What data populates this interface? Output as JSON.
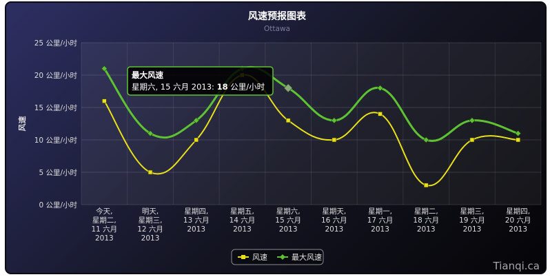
{
  "chart_data": {
    "type": "line",
    "title": "风速预报图表",
    "subtitle": "Ottawa",
    "ylabel": "风速",
    "xlabel": "",
    "ylim": [
      0,
      25
    ],
    "y_ticks": [
      0,
      5,
      10,
      15,
      20,
      25
    ],
    "y_tick_labels": [
      "0 公里/小时",
      "5 公里/小时",
      "10 公里/小时",
      "15 公里/小时",
      "20 公里/小时",
      "25 公里/小时"
    ],
    "categories": [
      [
        "今天,",
        "星期二,",
        "11 六月",
        "2013"
      ],
      [
        "明天,",
        "星期三,",
        "12 六月",
        "2013"
      ],
      [
        "星期四,",
        "13 六月",
        "2013"
      ],
      [
        "星期五,",
        "14 六月",
        "2013"
      ],
      [
        "星期六,",
        "15 六月",
        "2013"
      ],
      [
        "星期天,",
        "16 六月",
        "2013"
      ],
      [
        "星期一,",
        "17 六月",
        "2013"
      ],
      [
        "星期二,",
        "18 六月",
        "2013"
      ],
      [
        "星期三,",
        "19 六月",
        "2013"
      ],
      [
        "星期四,",
        "20 六月",
        "2013"
      ]
    ],
    "series": [
      {
        "name": "风速",
        "color": "#e8e01a",
        "marker": "square",
        "values": [
          16,
          5,
          10,
          20,
          13,
          10,
          14,
          3,
          10,
          10
        ]
      },
      {
        "name": "最大风速",
        "color": "#5ec233",
        "marker": "diamond",
        "values": [
          21,
          11,
          13,
          21,
          18,
          13,
          18,
          10,
          13,
          11
        ]
      }
    ],
    "grid": true,
    "legend": "bottom-center",
    "tooltip": {
      "title": "最大风速",
      "body_prefix": "星期六, 15 六月 2013: ",
      "value": "18",
      "unit": " 公里/小时",
      "point_index": 4,
      "series_index": 1
    },
    "credit": "Tianqi.ca"
  }
}
